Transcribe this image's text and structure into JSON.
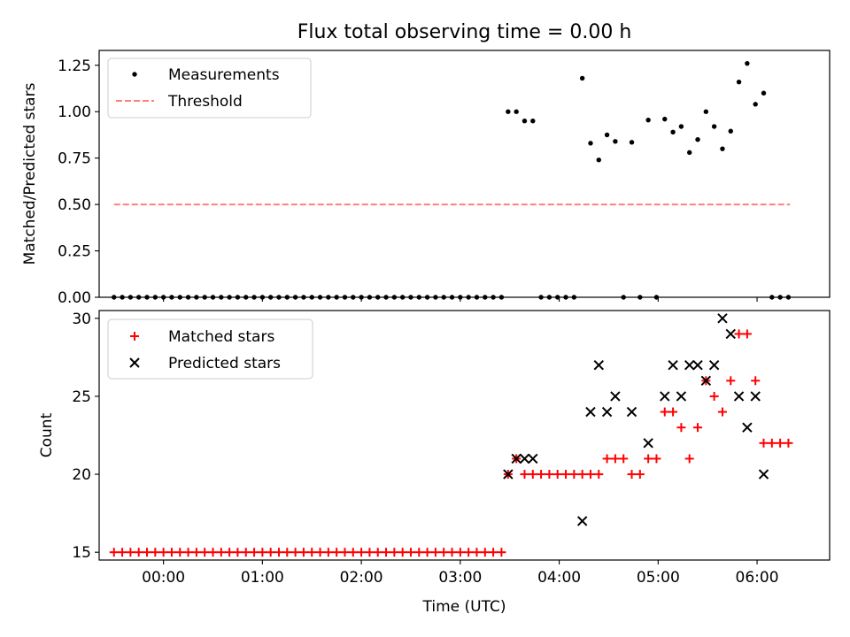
{
  "title": "Flux total observing time = 0.00 h",
  "chart_data": [
    {
      "type": "scatter",
      "title": "Flux total observing time = 0.00 h",
      "xlabel": "",
      "ylabel": "Matched/Predicted stars",
      "xlim": [
        "23:21",
        "06:44"
      ],
      "ylim": [
        0.0,
        1.33
      ],
      "xticks": [
        "00:00",
        "01:00",
        "02:00",
        "03:00",
        "04:00",
        "05:00",
        "06:00"
      ],
      "yticks": [
        "0.00",
        "0.25",
        "0.50",
        "0.75",
        "1.00",
        "1.25"
      ],
      "yticks_values": [
        0.0,
        0.25,
        0.5,
        0.75,
        1.0,
        1.25
      ],
      "grid": false,
      "legend": "upper-left",
      "series": [
        {
          "name": "Measurements",
          "marker": "dot",
          "color": "#000000",
          "points": [
            [
              "23:30",
              0
            ],
            [
              "23:35",
              0
            ],
            [
              "23:40",
              0
            ],
            [
              "23:45",
              0
            ],
            [
              "23:50",
              0
            ],
            [
              "23:55",
              0
            ],
            [
              "00:00",
              0
            ],
            [
              "00:05",
              0
            ],
            [
              "00:10",
              0
            ],
            [
              "00:15",
              0
            ],
            [
              "00:20",
              0
            ],
            [
              "00:25",
              0
            ],
            [
              "00:30",
              0
            ],
            [
              "00:35",
              0
            ],
            [
              "00:40",
              0
            ],
            [
              "00:45",
              0
            ],
            [
              "00:50",
              0
            ],
            [
              "00:55",
              0
            ],
            [
              "01:00",
              0
            ],
            [
              "01:05",
              0
            ],
            [
              "01:10",
              0
            ],
            [
              "01:15",
              0
            ],
            [
              "01:20",
              0
            ],
            [
              "01:25",
              0
            ],
            [
              "01:30",
              0
            ],
            [
              "01:35",
              0
            ],
            [
              "01:40",
              0
            ],
            [
              "01:45",
              0
            ],
            [
              "01:50",
              0
            ],
            [
              "01:55",
              0
            ],
            [
              "02:00",
              0
            ],
            [
              "02:05",
              0
            ],
            [
              "02:10",
              0
            ],
            [
              "02:15",
              0
            ],
            [
              "02:20",
              0
            ],
            [
              "02:25",
              0
            ],
            [
              "02:30",
              0
            ],
            [
              "02:35",
              0
            ],
            [
              "02:40",
              0
            ],
            [
              "02:45",
              0
            ],
            [
              "02:50",
              0
            ],
            [
              "02:55",
              0
            ],
            [
              "03:00",
              0
            ],
            [
              "03:05",
              0
            ],
            [
              "03:10",
              0
            ],
            [
              "03:15",
              0
            ],
            [
              "03:20",
              0
            ],
            [
              "03:25",
              0
            ],
            [
              "03:29",
              1.0
            ],
            [
              "03:34",
              1.0
            ],
            [
              "03:39",
              0.95
            ],
            [
              "03:44",
              0.95
            ],
            [
              "03:49",
              0
            ],
            [
              "03:54",
              0
            ],
            [
              "03:59",
              0
            ],
            [
              "04:04",
              0
            ],
            [
              "04:09",
              0
            ],
            [
              "04:14",
              1.18
            ],
            [
              "04:19",
              0.83
            ],
            [
              "04:24",
              0.74
            ],
            [
              "04:29",
              0.875
            ],
            [
              "04:34",
              0.84
            ],
            [
              "04:39",
              0
            ],
            [
              "04:44",
              0.835
            ],
            [
              "04:49",
              0
            ],
            [
              "04:54",
              0.955
            ],
            [
              "04:59",
              0
            ],
            [
              "05:04",
              0.96
            ],
            [
              "05:09",
              0.89
            ],
            [
              "05:14",
              0.92
            ],
            [
              "05:19",
              0.78
            ],
            [
              "05:24",
              0.85
            ],
            [
              "05:29",
              1.0
            ],
            [
              "05:34",
              0.92
            ],
            [
              "05:39",
              0.8
            ],
            [
              "05:44",
              0.895
            ],
            [
              "05:49",
              1.16
            ],
            [
              "05:54",
              1.26
            ],
            [
              "05:59",
              1.04
            ],
            [
              "06:04",
              1.1
            ],
            [
              "06:09",
              0
            ],
            [
              "06:14",
              0
            ],
            [
              "06:19",
              0
            ]
          ]
        },
        {
          "name": "Threshold",
          "marker": "dashed-line",
          "color": "#ff7f7f",
          "x": [
            "23:30",
            "06:20"
          ],
          "y": [
            0.5,
            0.5
          ]
        }
      ]
    },
    {
      "type": "scatter",
      "title": "",
      "xlabel": "Time (UTC)",
      "ylabel": "Count",
      "xlim": [
        "23:21",
        "06:44"
      ],
      "ylim": [
        14.5,
        30.5
      ],
      "xticks": [
        "00:00",
        "01:00",
        "02:00",
        "03:00",
        "04:00",
        "05:00",
        "06:00"
      ],
      "yticks": [
        "15",
        "20",
        "25",
        "30"
      ],
      "yticks_values": [
        15,
        20,
        25,
        30
      ],
      "grid": false,
      "legend": "upper-left",
      "series": [
        {
          "name": "Matched stars",
          "marker": "plus",
          "color": "#ff0000",
          "points": [
            [
              "23:30",
              15
            ],
            [
              "23:35",
              15
            ],
            [
              "23:40",
              15
            ],
            [
              "23:45",
              15
            ],
            [
              "23:50",
              15
            ],
            [
              "23:55",
              15
            ],
            [
              "00:00",
              15
            ],
            [
              "00:05",
              15
            ],
            [
              "00:10",
              15
            ],
            [
              "00:15",
              15
            ],
            [
              "00:20",
              15
            ],
            [
              "00:25",
              15
            ],
            [
              "00:30",
              15
            ],
            [
              "00:35",
              15
            ],
            [
              "00:40",
              15
            ],
            [
              "00:45",
              15
            ],
            [
              "00:50",
              15
            ],
            [
              "00:55",
              15
            ],
            [
              "01:00",
              15
            ],
            [
              "01:05",
              15
            ],
            [
              "01:10",
              15
            ],
            [
              "01:15",
              15
            ],
            [
              "01:20",
              15
            ],
            [
              "01:25",
              15
            ],
            [
              "01:30",
              15
            ],
            [
              "01:35",
              15
            ],
            [
              "01:40",
              15
            ],
            [
              "01:45",
              15
            ],
            [
              "01:50",
              15
            ],
            [
              "01:55",
              15
            ],
            [
              "02:00",
              15
            ],
            [
              "02:05",
              15
            ],
            [
              "02:10",
              15
            ],
            [
              "02:15",
              15
            ],
            [
              "02:20",
              15
            ],
            [
              "02:25",
              15
            ],
            [
              "02:30",
              15
            ],
            [
              "02:35",
              15
            ],
            [
              "02:40",
              15
            ],
            [
              "02:45",
              15
            ],
            [
              "02:50",
              15
            ],
            [
              "02:55",
              15
            ],
            [
              "03:00",
              15
            ],
            [
              "03:05",
              15
            ],
            [
              "03:10",
              15
            ],
            [
              "03:15",
              15
            ],
            [
              "03:20",
              15
            ],
            [
              "03:25",
              15
            ],
            [
              "03:29",
              20
            ],
            [
              "03:34",
              21
            ],
            [
              "03:39",
              20
            ],
            [
              "03:44",
              20
            ],
            [
              "03:49",
              20
            ],
            [
              "03:54",
              20
            ],
            [
              "03:59",
              20
            ],
            [
              "04:04",
              20
            ],
            [
              "04:09",
              20
            ],
            [
              "04:14",
              20
            ],
            [
              "04:19",
              20
            ],
            [
              "04:24",
              20
            ],
            [
              "04:29",
              21
            ],
            [
              "04:34",
              21
            ],
            [
              "04:39",
              21
            ],
            [
              "04:44",
              20
            ],
            [
              "04:49",
              20
            ],
            [
              "04:54",
              21
            ],
            [
              "04:59",
              21
            ],
            [
              "05:04",
              24
            ],
            [
              "05:09",
              24
            ],
            [
              "05:14",
              23
            ],
            [
              "05:19",
              21
            ],
            [
              "05:24",
              23
            ],
            [
              "05:29",
              26
            ],
            [
              "05:34",
              25
            ],
            [
              "05:39",
              24
            ],
            [
              "05:44",
              26
            ],
            [
              "05:49",
              29
            ],
            [
              "05:54",
              29
            ],
            [
              "05:59",
              26
            ],
            [
              "06:04",
              22
            ],
            [
              "06:09",
              22
            ],
            [
              "06:14",
              22
            ],
            [
              "06:19",
              22
            ]
          ]
        },
        {
          "name": "Predicted stars",
          "marker": "x",
          "color": "#000000",
          "points": [
            [
              "03:29",
              20
            ],
            [
              "03:34",
              21
            ],
            [
              "03:39",
              21
            ],
            [
              "03:44",
              21
            ],
            [
              "04:14",
              17
            ],
            [
              "04:19",
              24
            ],
            [
              "04:24",
              27
            ],
            [
              "04:29",
              24
            ],
            [
              "04:34",
              25
            ],
            [
              "04:44",
              24
            ],
            [
              "04:54",
              22
            ],
            [
              "05:04",
              25
            ],
            [
              "05:09",
              27
            ],
            [
              "05:14",
              25
            ],
            [
              "05:19",
              27
            ],
            [
              "05:24",
              27
            ],
            [
              "05:29",
              26
            ],
            [
              "05:34",
              27
            ],
            [
              "05:39",
              30
            ],
            [
              "05:44",
              29
            ],
            [
              "05:49",
              25
            ],
            [
              "05:54",
              23
            ],
            [
              "05:59",
              25
            ],
            [
              "06:04",
              20
            ]
          ]
        }
      ]
    }
  ]
}
